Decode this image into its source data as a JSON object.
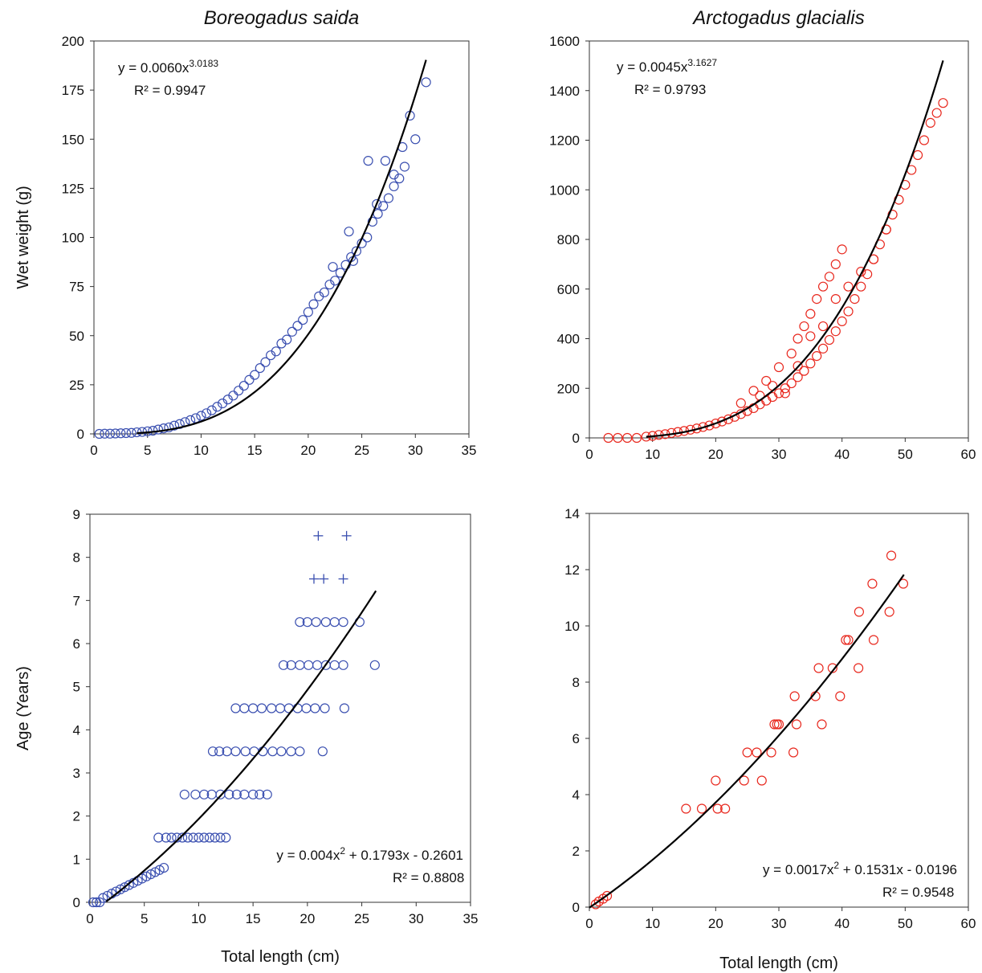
{
  "chart_data": [
    {
      "type": "scatter",
      "title": "Boreogadus saida",
      "xlabel": "",
      "ylabel": "Wet weight (g)",
      "xlim": [
        0,
        35
      ],
      "ylim": [
        0,
        200
      ],
      "xticks": [
        "0",
        "5",
        "10",
        "15",
        "20",
        "25",
        "30",
        "35"
      ],
      "yticks": [
        "0",
        "25",
        "50",
        "75",
        "100",
        "125",
        "150",
        "175",
        "200"
      ],
      "marker_color": "#3a4fb0",
      "grid": false,
      "equation": {
        "lead": "y = 0.0060x",
        "sup": "3.0183",
        "tail": ""
      },
      "r2": "R² = 0.9947",
      "fit": {
        "kind": "power",
        "a": 0.006,
        "b": 3.0183,
        "x_range": [
          4,
          31
        ]
      },
      "series": [
        {
          "marker": "circle",
          "x": [
            0.5,
            1.0,
            1.5,
            2.0,
            2.5,
            3.0,
            3.5,
            4.0,
            4.5,
            5.0,
            5.5,
            6.0,
            6.5,
            7.0,
            7.5,
            8.0,
            8.5,
            9.0,
            9.5,
            10.0,
            10.5,
            11.0,
            11.5,
            12.0,
            12.5,
            13.0,
            13.5,
            14.0,
            14.5,
            15.0,
            15.5,
            16.0,
            16.5,
            17.0,
            17.5,
            18.0,
            18.5,
            19.0,
            19.5,
            20.0,
            20.5,
            21.0,
            21.5,
            22.0,
            22.5,
            23.0,
            23.5,
            24.0,
            24.5,
            25.0,
            25.5,
            26.0,
            26.5,
            27.0,
            27.5,
            28.0,
            28.5,
            29.0,
            30.0,
            31.0,
            22.3,
            23.8,
            24.2,
            25.6,
            26.4,
            27.2,
            28.0,
            28.8,
            29.5
          ],
          "y": [
            0.0,
            0.1,
            0.1,
            0.2,
            0.3,
            0.4,
            0.5,
            0.8,
            1.0,
            1.3,
            1.6,
            2.2,
            2.8,
            3.3,
            4.2,
            5.0,
            6.0,
            7.0,
            8.0,
            9.2,
            10.5,
            12.0,
            13.8,
            15.5,
            17.5,
            19.5,
            22.0,
            24.5,
            27.5,
            30.0,
            33.5,
            36.5,
            40.0,
            42.0,
            46.0,
            48.0,
            52.0,
            55.0,
            58.0,
            62.0,
            66.0,
            70.0,
            72.0,
            76.0,
            78.0,
            82.0,
            86.0,
            90.0,
            93.0,
            97.0,
            100.0,
            108.0,
            112.0,
            116.0,
            120.0,
            126.0,
            130.0,
            136.0,
            150.0,
            179.0,
            85.0,
            103.0,
            88.0,
            139.0,
            117.0,
            139.0,
            132.0,
            146.0,
            162.0
          ]
        }
      ]
    },
    {
      "type": "scatter",
      "title": "Arctogadus glacialis",
      "xlabel": "",
      "ylabel": "",
      "xlim": [
        0,
        60
      ],
      "ylim": [
        0,
        1600
      ],
      "xticks": [
        "0",
        "10",
        "20",
        "30",
        "40",
        "50",
        "60"
      ],
      "yticks": [
        "0",
        "200",
        "400",
        "600",
        "800",
        "1000",
        "1200",
        "1400",
        "1600"
      ],
      "marker_color": "#e8281e",
      "grid": false,
      "equation": {
        "lead": "y = 0.0045x",
        "sup": "3.1627",
        "tail": ""
      },
      "r2": "R² = 0.9793",
      "fit": {
        "kind": "power",
        "a": 0.0045,
        "b": 3.1627,
        "x_range": [
          9,
          56
        ]
      },
      "series": [
        {
          "marker": "circle",
          "x": [
            3,
            4.5,
            6,
            7.5,
            9,
            10,
            11,
            12,
            13,
            14,
            15,
            16,
            17,
            18,
            19,
            20,
            21,
            22,
            23,
            24,
            25,
            26,
            27,
            28,
            29,
            30,
            31,
            32,
            33,
            34,
            35,
            36,
            37,
            38,
            39,
            40,
            41,
            42,
            43,
            44,
            45,
            46,
            47,
            48,
            49,
            50,
            51,
            52,
            53,
            54,
            55,
            56,
            24,
            26,
            28,
            30,
            32,
            33,
            34,
            35,
            36,
            37,
            38,
            39,
            40,
            27,
            29,
            31,
            33,
            35,
            37,
            39,
            41,
            43,
            45,
            47
          ],
          "y": [
            0,
            0,
            0,
            0,
            5,
            8,
            12,
            15,
            20,
            24,
            28,
            33,
            38,
            44,
            50,
            58,
            66,
            75,
            85,
            96,
            108,
            120,
            135,
            150,
            165,
            180,
            200,
            220,
            245,
            270,
            300,
            330,
            360,
            395,
            430,
            470,
            510,
            560,
            610,
            660,
            720,
            780,
            840,
            900,
            960,
            1020,
            1080,
            1140,
            1200,
            1270,
            1310,
            1350,
            140,
            190,
            230,
            285,
            340,
            400,
            450,
            500,
            560,
            610,
            650,
            700,
            760,
            170,
            210,
            180,
            290,
            410,
            450,
            560,
            610,
            670,
            720,
            840
          ]
        }
      ]
    },
    {
      "type": "scatter",
      "title": "",
      "xlabel": "Total length (cm)",
      "ylabel": "Age (Years)",
      "xlim": [
        0,
        35
      ],
      "ylim": [
        0,
        9
      ],
      "xticks": [
        "0",
        "5",
        "10",
        "15",
        "20",
        "25",
        "30",
        "35"
      ],
      "yticks": [
        "0",
        "1",
        "2",
        "3",
        "4",
        "5",
        "6",
        "7",
        "8",
        "9"
      ],
      "marker_color": "#3a4fb0",
      "grid": false,
      "equation": {
        "lead": "y = 0.004x",
        "sup": "2",
        "tail": " + 0.1793x - 0.2601"
      },
      "r2": "R² = 0.8808",
      "fit": {
        "kind": "poly2",
        "c2": 0.004,
        "c1": 0.1793,
        "c0": -0.2601,
        "x_range": [
          1.5,
          26.3
        ]
      },
      "series": [
        {
          "name": "",
          "marker": "circle",
          "x": [
            0.3,
            0.6,
            0.9,
            1.2,
            1.6,
            2.0,
            2.4,
            2.8,
            3.2,
            3.6,
            4.0,
            4.4,
            4.8,
            5.2,
            5.6,
            6.0,
            6.4,
            6.8,
            6.3,
            7.0,
            7.5,
            8.0,
            8.5,
            9.0,
            9.5,
            10.0,
            10.5,
            11.0,
            11.5,
            12.0,
            12.5,
            8.7,
            9.7,
            10.5,
            11.2,
            12.0,
            12.8,
            13.5,
            14.2,
            15.0,
            15.6,
            16.3,
            11.3,
            11.9,
            12.6,
            13.4,
            14.3,
            15.1,
            15.9,
            16.8,
            17.6,
            18.5,
            19.3,
            21.4,
            13.4,
            14.2,
            15.0,
            15.8,
            16.7,
            17.5,
            18.3,
            19.1,
            19.9,
            20.7,
            21.6,
            23.4,
            17.8,
            18.5,
            19.3,
            20.1,
            20.9,
            21.7,
            22.5,
            23.3,
            26.2,
            19.3,
            20.0,
            20.8,
            21.7,
            22.5,
            23.3,
            24.8
          ],
          "y": [
            0,
            0,
            0,
            0.1,
            0.15,
            0.2,
            0.25,
            0.3,
            0.35,
            0.4,
            0.45,
            0.5,
            0.55,
            0.6,
            0.65,
            0.7,
            0.75,
            0.8,
            1.5,
            1.5,
            1.5,
            1.5,
            1.5,
            1.5,
            1.5,
            1.5,
            1.5,
            1.5,
            1.5,
            1.5,
            1.5,
            2.5,
            2.5,
            2.5,
            2.5,
            2.5,
            2.5,
            2.5,
            2.5,
            2.5,
            2.5,
            2.5,
            3.5,
            3.5,
            3.5,
            3.5,
            3.5,
            3.5,
            3.5,
            3.5,
            3.5,
            3.5,
            3.5,
            3.5,
            4.5,
            4.5,
            4.5,
            4.5,
            4.5,
            4.5,
            4.5,
            4.5,
            4.5,
            4.5,
            4.5,
            4.5,
            5.5,
            5.5,
            5.5,
            5.5,
            5.5,
            5.5,
            5.5,
            5.5,
            5.5,
            6.5,
            6.5,
            6.5,
            6.5,
            6.5,
            6.5,
            6.5
          ]
        },
        {
          "name": "",
          "marker": "plus",
          "x": [
            21.0,
            23.6,
            20.6,
            21.5,
            23.3
          ],
          "y": [
            8.5,
            8.5,
            7.5,
            7.5,
            7.5
          ]
        }
      ]
    },
    {
      "type": "scatter",
      "title": "",
      "xlabel": "Total length (cm)",
      "ylabel": "",
      "xlim": [
        0,
        60
      ],
      "ylim": [
        0,
        14
      ],
      "xticks": [
        "0",
        "10",
        "20",
        "30",
        "40",
        "50",
        "60"
      ],
      "yticks": [
        "0",
        "2",
        "4",
        "6",
        "8",
        "10",
        "12",
        "14"
      ],
      "marker_color": "#e8281e",
      "grid": false,
      "equation": {
        "lead": "y = 0.0017x",
        "sup": "2",
        "tail": " + 0.1531x - 0.0196"
      },
      "r2": "R² = 0.9548",
      "fit": {
        "kind": "poly2",
        "c2": 0.0017,
        "c1": 0.1531,
        "c0": -0.0196,
        "x_range": [
          0,
          49.8
        ]
      },
      "series": [
        {
          "marker": "circle",
          "x": [
            1.0,
            1.5,
            2.2,
            2.8,
            15.3,
            17.8,
            20.0,
            20.3,
            21.5,
            24.5,
            25.0,
            26.5,
            27.3,
            28.8,
            29.3,
            30.0,
            29.7,
            32.3,
            32.5,
            32.8,
            35.8,
            36.3,
            36.8,
            38.5,
            39.7,
            40.6,
            41.0,
            42.6,
            42.7,
            44.8,
            45.0,
            47.5,
            47.8,
            49.7
          ],
          "y": [
            0.1,
            0.2,
            0.3,
            0.4,
            3.5,
            3.5,
            4.5,
            3.5,
            3.5,
            4.5,
            5.5,
            5.5,
            4.5,
            5.5,
            6.5,
            6.5,
            6.5,
            5.5,
            7.5,
            6.5,
            7.5,
            8.5,
            6.5,
            8.5,
            7.5,
            9.5,
            9.5,
            8.5,
            10.5,
            11.5,
            9.5,
            10.5,
            12.5,
            11.5
          ]
        }
      ]
    }
  ]
}
